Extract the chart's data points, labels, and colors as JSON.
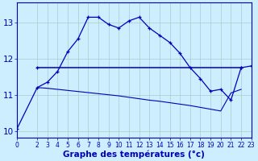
{
  "xlabel": "Graphe des températures (°c)",
  "background_color": "#cceeff",
  "grid_color": "#aacccc",
  "line_color": "#0000bb",
  "xlim": [
    0,
    23
  ],
  "ylim": [
    9.8,
    13.55
  ],
  "temp_main_x": [
    0,
    2,
    3,
    4,
    5,
    6,
    7,
    8,
    9,
    10,
    11,
    12,
    13,
    14,
    15,
    16,
    17,
    18,
    19,
    20,
    21,
    22,
    23
  ],
  "temp_main_y": [
    10.05,
    11.2,
    11.35,
    11.65,
    12.2,
    12.55,
    13.15,
    13.15,
    12.95,
    12.85,
    13.05,
    13.15,
    12.85,
    12.65,
    12.45,
    12.15,
    11.75,
    11.45,
    11.1,
    11.15,
    10.85,
    11.75,
    11.8
  ],
  "flat_line_x": [
    2,
    22
  ],
  "flat_line_y": [
    11.75,
    11.75
  ],
  "decline_x": [
    2,
    3,
    4,
    5,
    6,
    7,
    8,
    9,
    10,
    11,
    12,
    13,
    14,
    15,
    16,
    17,
    18,
    19,
    20,
    21,
    22
  ],
  "decline_y": [
    11.2,
    11.18,
    11.15,
    11.12,
    11.09,
    11.06,
    11.03,
    11.0,
    10.97,
    10.93,
    10.89,
    10.85,
    10.82,
    10.78,
    10.74,
    10.7,
    10.65,
    10.6,
    10.55,
    11.05,
    11.15
  ],
  "yticks": [
    10,
    11,
    12,
    13
  ],
  "xticks": [
    0,
    2,
    3,
    4,
    5,
    6,
    7,
    8,
    9,
    10,
    11,
    12,
    13,
    14,
    15,
    16,
    17,
    18,
    19,
    20,
    21,
    22,
    23
  ],
  "ylabel_fontsize": 7.5,
  "xlabel_fontsize": 7.5,
  "tick_fontsize": 5.5
}
